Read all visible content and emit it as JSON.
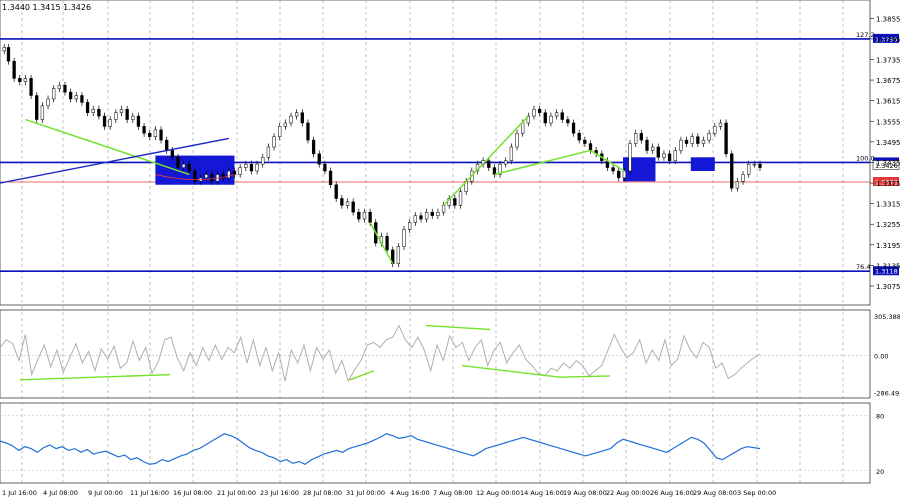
{
  "header": {
    "symbol_text": "1.3440 1.3415 1.3426"
  },
  "chart_data": [
    {
      "type": "candlestick",
      "pane": "price",
      "y_ticks": [
        "1.3855",
        "1.3795",
        "1.3735",
        "1.3675",
        "1.3615",
        "1.3555",
        "1.3495",
        "1.3435",
        "1.3375",
        "1.3315",
        "1.3255",
        "1.3195",
        "1.3135",
        "1.3075"
      ],
      "ylim": [
        1.304,
        1.3885
      ],
      "current_price_label": "1.3426",
      "levels": [
        {
          "name": "fib-127",
          "label": "127.2",
          "price_label": "1.3795",
          "price": 1.3795,
          "color": "#0a10b8"
        },
        {
          "name": "fib-100",
          "label": "100.0",
          "price_label": "1.3435",
          "price": 1.3435,
          "color": "#0a10b8"
        },
        {
          "name": "red-level",
          "label": "",
          "price_label": "1.3378",
          "price": 1.3378,
          "color": "#e03a3a"
        },
        {
          "name": "fib-76",
          "label": "76.4",
          "price_label": "1.3118",
          "price": 1.3118,
          "color": "#0a10b8"
        }
      ],
      "close_path": [
        [
          0,
          1.376
        ],
        [
          3,
          1.377
        ],
        [
          6,
          1.373
        ],
        [
          10,
          1.368
        ],
        [
          14,
          1.367
        ],
        [
          18,
          1.368
        ],
        [
          22,
          1.363
        ],
        [
          26,
          1.356
        ],
        [
          30,
          1.36
        ],
        [
          34,
          1.362
        ],
        [
          38,
          1.365
        ],
        [
          42,
          1.366
        ],
        [
          46,
          1.364
        ],
        [
          50,
          1.362
        ],
        [
          54,
          1.363
        ],
        [
          58,
          1.361
        ],
        [
          62,
          1.358
        ],
        [
          66,
          1.359
        ],
        [
          70,
          1.357
        ],
        [
          74,
          1.354
        ],
        [
          78,
          1.356
        ],
        [
          82,
          1.358
        ],
        [
          86,
          1.359
        ],
        [
          90,
          1.356
        ],
        [
          94,
          1.357
        ],
        [
          98,
          1.354
        ],
        [
          102,
          1.352
        ],
        [
          106,
          1.351
        ],
        [
          110,
          1.353
        ],
        [
          114,
          1.35
        ],
        [
          118,
          1.347
        ],
        [
          122,
          1.345
        ],
        [
          126,
          1.342
        ],
        [
          130,
          1.343
        ],
        [
          134,
          1.341
        ],
        [
          138,
          1.338
        ],
        [
          142,
          1.339
        ],
        [
          146,
          1.34
        ],
        [
          150,
          1.338
        ],
        [
          154,
          1.34
        ],
        [
          158,
          1.339
        ],
        [
          162,
          1.341
        ],
        [
          166,
          1.34
        ],
        [
          170,
          1.342
        ],
        [
          174,
          1.343
        ],
        [
          178,
          1.341
        ],
        [
          182,
          1.343
        ],
        [
          186,
          1.345
        ],
        [
          190,
          1.348
        ],
        [
          194,
          1.351
        ],
        [
          198,
          1.354
        ],
        [
          202,
          1.355
        ],
        [
          206,
          1.357
        ],
        [
          210,
          1.358
        ],
        [
          214,
          1.355
        ],
        [
          218,
          1.35
        ],
        [
          222,
          1.346
        ],
        [
          226,
          1.343
        ],
        [
          230,
          1.341
        ],
        [
          234,
          1.337
        ],
        [
          238,
          1.333
        ],
        [
          242,
          1.331
        ],
        [
          246,
          1.332
        ],
        [
          250,
          1.329
        ],
        [
          254,
          1.327
        ],
        [
          258,
          1.329
        ],
        [
          262,
          1.326
        ],
        [
          266,
          1.32
        ],
        [
          270,
          1.322
        ],
        [
          274,
          1.318
        ],
        [
          278,
          1.314
        ],
        [
          282,
          1.319
        ],
        [
          286,
          1.324
        ],
        [
          290,
          1.326
        ],
        [
          294,
          1.328
        ],
        [
          298,
          1.327
        ],
        [
          302,
          1.329
        ],
        [
          306,
          1.328
        ],
        [
          310,
          1.329
        ],
        [
          314,
          1.331
        ],
        [
          318,
          1.333
        ],
        [
          322,
          1.331
        ],
        [
          326,
          1.335
        ],
        [
          330,
          1.338
        ],
        [
          334,
          1.341
        ],
        [
          338,
          1.343
        ],
        [
          342,
          1.344
        ],
        [
          346,
          1.342
        ],
        [
          350,
          1.34
        ],
        [
          354,
          1.343
        ],
        [
          358,
          1.344
        ],
        [
          362,
          1.348
        ],
        [
          366,
          1.352
        ],
        [
          370,
          1.355
        ],
        [
          374,
          1.357
        ],
        [
          378,
          1.359
        ],
        [
          382,
          1.358
        ],
        [
          386,
          1.355
        ],
        [
          390,
          1.357
        ],
        [
          394,
          1.358
        ],
        [
          398,
          1.356
        ],
        [
          402,
          1.355
        ],
        [
          406,
          1.352
        ],
        [
          410,
          1.35
        ],
        [
          414,
          1.349
        ],
        [
          418,
          1.347
        ],
        [
          422,
          1.346
        ],
        [
          426,
          1.344
        ],
        [
          430,
          1.342
        ],
        [
          434,
          1.341
        ],
        [
          438,
          1.339
        ],
        [
          442,
          1.341
        ],
        [
          446,
          1.349
        ],
        [
          450,
          1.352
        ],
        [
          454,
          1.35
        ],
        [
          458,
          1.347
        ],
        [
          462,
          1.348
        ],
        [
          466,
          1.345
        ],
        [
          470,
          1.346
        ],
        [
          474,
          1.344
        ],
        [
          478,
          1.347
        ],
        [
          482,
          1.35
        ],
        [
          486,
          1.349
        ],
        [
          490,
          1.351
        ],
        [
          494,
          1.349
        ],
        [
          498,
          1.35
        ],
        [
          502,
          1.352
        ],
        [
          506,
          1.354
        ],
        [
          510,
          1.355
        ],
        [
          514,
          1.346
        ],
        [
          518,
          1.336
        ],
        [
          522,
          1.338
        ],
        [
          526,
          1.34
        ],
        [
          530,
          1.343
        ],
        [
          534,
          1.343
        ],
        [
          538,
          1.342
        ]
      ]
    },
    {
      "type": "line",
      "pane": "cci",
      "y_ticks": [
        "305.3886",
        "0.00",
        "-286.493"
      ],
      "series": [
        {
          "name": "",
          "color": "#b0b0b0",
          "values": [
            60,
            120,
            90,
            -40,
            160,
            -150,
            -30,
            80,
            -90,
            40,
            -130,
            -20,
            90,
            -60,
            30,
            -120,
            50,
            -30,
            70,
            -100,
            -60,
            110,
            -40,
            60,
            -140,
            -50,
            120,
            140,
            -20,
            -120,
            20,
            -80,
            60,
            -40,
            80,
            -30,
            60,
            20,
            140,
            -60,
            120,
            -80,
            60,
            -120,
            20,
            -200,
            40,
            -60,
            80,
            -120,
            60,
            -30,
            40,
            -140,
            -40,
            -200,
            -110,
            -40,
            80,
            100,
            60,
            120,
            140,
            230,
            120,
            60,
            140,
            40,
            -120,
            80,
            -40,
            150,
            60,
            100,
            -40,
            60,
            120,
            -80,
            40,
            100,
            -60,
            20,
            80,
            -30,
            -80,
            -140,
            -160,
            -100,
            -120,
            -60,
            -100,
            -40,
            -80,
            -160,
            -120,
            -80,
            40,
            160,
            60,
            -20,
            20,
            120,
            -60,
            40,
            -40,
            120,
            -80,
            -30,
            150,
            40,
            -20,
            100,
            60,
            -100,
            -60,
            -180,
            -150,
            -100,
            -60,
            -20,
            10
          ]
        }
      ]
    },
    {
      "type": "line",
      "pane": "rsi",
      "y_ticks": [
        "80",
        "20"
      ],
      "ylim": [
        10,
        90
      ],
      "series": [
        {
          "name": "",
          "color": "#1f6fd8",
          "values": [
            52,
            50,
            47,
            42,
            46,
            44,
            40,
            45,
            48,
            44,
            46,
            42,
            44,
            40,
            43,
            38,
            40,
            41,
            38,
            35,
            37,
            32,
            34,
            30,
            27,
            28,
            32,
            30,
            33,
            36,
            38,
            42,
            44,
            48,
            52,
            56,
            60,
            58,
            55,
            50,
            45,
            42,
            40,
            36,
            34,
            30,
            32,
            28,
            30,
            27,
            32,
            35,
            38,
            40,
            42,
            40,
            44,
            46,
            48,
            50,
            53,
            56,
            60,
            58,
            55,
            56,
            58,
            54,
            52,
            50,
            48,
            46,
            44,
            42,
            40,
            38,
            36,
            40,
            44,
            46,
            48,
            50,
            52,
            54,
            56,
            54,
            52,
            50,
            48,
            46,
            44,
            42,
            40,
            38,
            36,
            38,
            40,
            42,
            44,
            50,
            54,
            52,
            50,
            48,
            46,
            44,
            42,
            40,
            44,
            48,
            52,
            56,
            54,
            50,
            42,
            34,
            32,
            36,
            40,
            44,
            46,
            45,
            44
          ]
        }
      ]
    }
  ],
  "time_axis": [
    "1 Jul 16:00",
    "4 Jul 08:00",
    "9 Jul 00:00",
    "11 Jul 16:00",
    "16 Jul 08:00",
    "21 Jul 00:00",
    "23 Jul 16:00",
    "28 Jul 08:00",
    "31 Jul 00:00",
    "4 Aug 16:00",
    "7 Aug 08:00",
    "12 Aug 00:00",
    "14 Aug 16:00",
    "19 Aug 08:00",
    "22 Aug 00:00",
    "26 Aug 16:00",
    "29 Aug 08:00",
    "3 Sep 00:00"
  ],
  "colors": {
    "candle_up": "#000000",
    "box": "#1418d6",
    "trend": "#74e12c",
    "trendline_blue": "#1c28c4"
  }
}
